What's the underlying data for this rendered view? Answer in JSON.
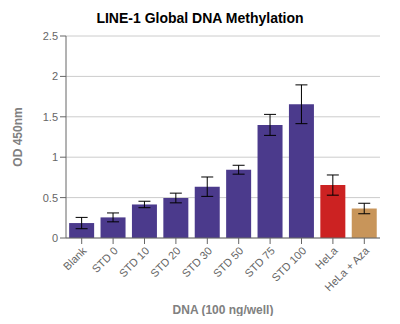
{
  "chart_data": {
    "type": "bar",
    "title": "LINE-1 Global DNA Methylation",
    "xlabel": "DNA (100 ng/well)",
    "ylabel": "OD 450nm",
    "categories": [
      "Blank",
      "STD 0",
      "STD 10",
      "STD 20",
      "STD 30",
      "STD 50",
      "STD 75",
      "STD 100",
      "HeLa",
      "HeLa + Aza"
    ],
    "values": [
      0.185,
      0.255,
      0.415,
      0.495,
      0.635,
      0.845,
      1.4,
      1.655,
      0.655,
      0.365
    ],
    "errors": [
      0.07,
      0.055,
      0.04,
      0.06,
      0.12,
      0.055,
      0.13,
      0.24,
      0.125,
      0.065
    ],
    "colors": [
      "#4B3A8C",
      "#4B3A8C",
      "#4B3A8C",
      "#4B3A8C",
      "#4B3A8C",
      "#4B3A8C",
      "#4B3A8C",
      "#4B3A8C",
      "#CC2222",
      "#C8955A"
    ],
    "ylim": [
      0,
      2.5
    ],
    "yticks": [
      0,
      0.5,
      1,
      1.5,
      2,
      2.5
    ],
    "grid": true
  }
}
